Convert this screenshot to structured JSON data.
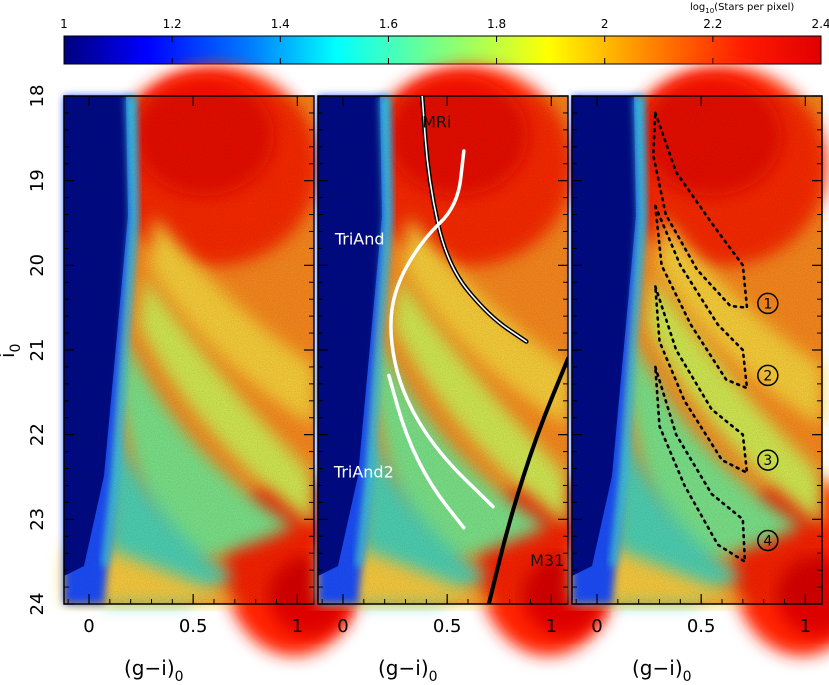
{
  "colorbar": {
    "label_main": "log",
    "label_sub": "10",
    "label_rest": "(Stars per pixel)",
    "ticks": [
      "1",
      "1.2",
      "1.4",
      "1.6",
      "1.8",
      "2",
      "2.2",
      "2.4"
    ],
    "tick_values": [
      1.0,
      1.2,
      1.4,
      1.6,
      1.8,
      2.0,
      2.2,
      2.4
    ],
    "range": [
      1.0,
      2.4
    ],
    "colormap": "jet"
  },
  "chart_data": [
    {
      "type": "heatmap",
      "panel": "left",
      "xlabel_main": "(g−i)",
      "xlabel_sub": "0",
      "ylabel_main": "i",
      "ylabel_sub": "0",
      "xlim": [
        -0.12,
        1.08
      ],
      "ylim": [
        24,
        18
      ],
      "x_ticks": [
        "0",
        "0.5",
        "1"
      ],
      "x_tick_values": [
        0,
        0.5,
        1
      ],
      "y_ticks": [
        "18",
        "19",
        "20",
        "21",
        "22",
        "23",
        "24"
      ],
      "y_tick_values": [
        18,
        19,
        20,
        21,
        22,
        23,
        24
      ],
      "annotations": []
    },
    {
      "type": "heatmap",
      "panel": "middle",
      "xlabel_main": "(g−i)",
      "xlabel_sub": "0",
      "xlim": [
        -0.12,
        1.08
      ],
      "ylim": [
        24,
        18
      ],
      "x_ticks": [
        "0",
        "0.5",
        "1"
      ],
      "x_tick_values": [
        0,
        0.5,
        1
      ],
      "annotations": [
        {
          "text": "MRi",
          "x": 0.45,
          "y": 18.32
        },
        {
          "text": "TriAnd",
          "x": 0.08,
          "y": 19.7
        },
        {
          "text": "TriAnd2",
          "x": 0.1,
          "y": 22.45
        },
        {
          "text": "M31",
          "x": 0.98,
          "y": 23.5
        }
      ],
      "tracks": [
        {
          "label": "MRi",
          "style": "black-white",
          "points": [
            [
              0.38,
              18.0
            ],
            [
              0.41,
              19.0
            ],
            [
              0.5,
              20.0
            ],
            [
              0.7,
              20.6
            ],
            [
              0.88,
              20.9
            ]
          ]
        },
        {
          "label": "TriAnd",
          "style": "white",
          "points": [
            [
              0.58,
              18.65
            ],
            [
              0.55,
              19.3
            ],
            [
              0.38,
              19.7
            ],
            [
              0.25,
              20.25
            ],
            [
              0.22,
              20.8
            ],
            [
              0.28,
              21.5
            ],
            [
              0.45,
              22.2
            ],
            [
              0.72,
              22.85
            ]
          ]
        },
        {
          "label": "TriAnd2",
          "style": "white",
          "points": [
            [
              0.22,
              21.3
            ],
            [
              0.3,
              22.0
            ],
            [
              0.42,
              22.6
            ],
            [
              0.58,
              23.1
            ]
          ]
        },
        {
          "label": "M31",
          "style": "black",
          "points": [
            [
              0.7,
              24.0
            ],
            [
              0.8,
              23.0
            ],
            [
              0.93,
              22.0
            ],
            [
              1.08,
              21.1
            ]
          ]
        }
      ]
    },
    {
      "type": "heatmap",
      "panel": "right",
      "xlabel_main": "(g−i)",
      "xlabel_sub": "0",
      "xlim": [
        -0.12,
        1.08
      ],
      "ylim": [
        24,
        18
      ],
      "x_ticks": [
        "0",
        "0.5",
        "1"
      ],
      "x_tick_values": [
        0,
        0.5,
        1
      ],
      "region_labels": [
        "1",
        "2",
        "3",
        "4"
      ],
      "regions": [
        {
          "id": "1",
          "x": 0.82,
          "y": 20.45,
          "points": [
            [
              0.28,
              18.2
            ],
            [
              0.38,
              18.9
            ],
            [
              0.55,
              19.5
            ],
            [
              0.7,
              20.0
            ],
            [
              0.72,
              20.5
            ],
            [
              0.64,
              20.48
            ],
            [
              0.48,
              20.05
            ],
            [
              0.33,
              19.4
            ],
            [
              0.27,
              18.7
            ],
            [
              0.28,
              18.2
            ]
          ]
        },
        {
          "id": "2",
          "x": 0.82,
          "y": 21.3,
          "points": [
            [
              0.28,
              19.3
            ],
            [
              0.4,
              20.0
            ],
            [
              0.58,
              20.7
            ],
            [
              0.7,
              21.0
            ],
            [
              0.72,
              21.45
            ],
            [
              0.62,
              21.35
            ],
            [
              0.45,
              20.7
            ],
            [
              0.31,
              20.0
            ],
            [
              0.28,
              19.3
            ]
          ]
        },
        {
          "id": "3",
          "x": 0.82,
          "y": 22.3,
          "points": [
            [
              0.28,
              20.25
            ],
            [
              0.38,
              21.0
            ],
            [
              0.55,
              21.7
            ],
            [
              0.7,
              22.0
            ],
            [
              0.72,
              22.45
            ],
            [
              0.6,
              22.3
            ],
            [
              0.42,
              21.6
            ],
            [
              0.3,
              20.9
            ],
            [
              0.28,
              20.25
            ]
          ]
        },
        {
          "id": "4",
          "x": 0.82,
          "y": 23.25,
          "points": [
            [
              0.28,
              21.2
            ],
            [
              0.38,
              22.0
            ],
            [
              0.55,
              22.7
            ],
            [
              0.7,
              23.0
            ],
            [
              0.71,
              23.5
            ],
            [
              0.58,
              23.3
            ],
            [
              0.42,
              22.6
            ],
            [
              0.3,
              21.9
            ],
            [
              0.28,
              21.2
            ]
          ]
        }
      ]
    }
  ]
}
